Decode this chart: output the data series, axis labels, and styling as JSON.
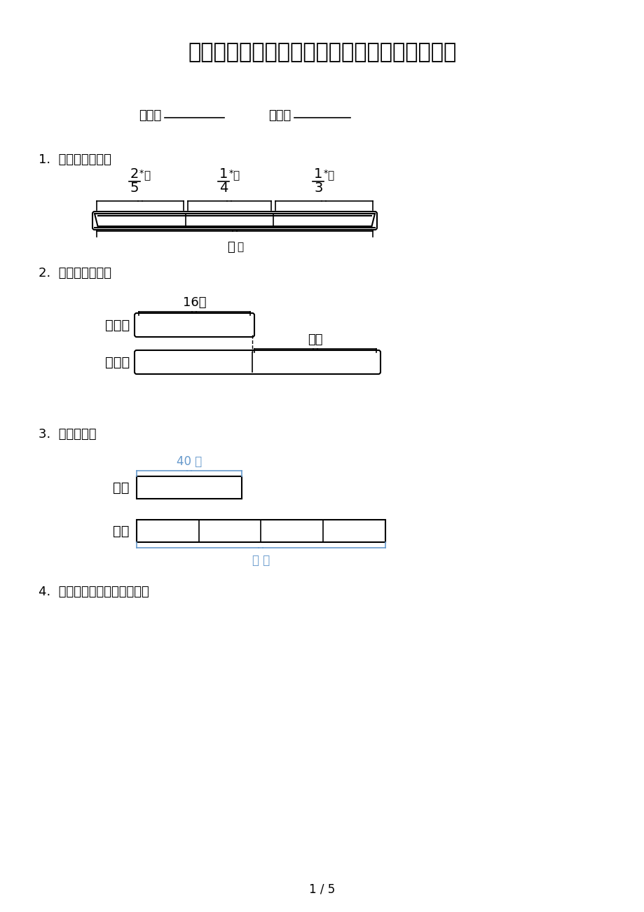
{
  "title": "部编三年级下册数学看图列式计算名校专项习题",
  "bg_color": "#ffffff",
  "text_color": "#000000",
  "blue_color": "#6699cc",
  "page_num": "1 / 5",
  "class_label": "班级：",
  "name_label": "姓名：",
  "q1_label": "1.  看图列式计算。",
  "q2_label": "2.  看图列式计算。",
  "q3_label": "3.  列式计算。",
  "q4_label": "4.  下面图形的面积各是多少？",
  "q1_fracs": [
    [
      "2",
      "5"
    ],
    [
      "1",
      "4"
    ],
    [
      "1",
      "3"
    ]
  ],
  "q1_star": "米",
  "q1_question": "？米",
  "q2_badminton_label": "羽毛球",
  "q2_pingpong_label": "乒乓球",
  "q2_count": "16个",
  "q2_question": "？个",
  "q3_zebra_label": "斑马",
  "q3_elephant_label": "大象",
  "q3_count": "40 只",
  "q3_question": "？ 只"
}
